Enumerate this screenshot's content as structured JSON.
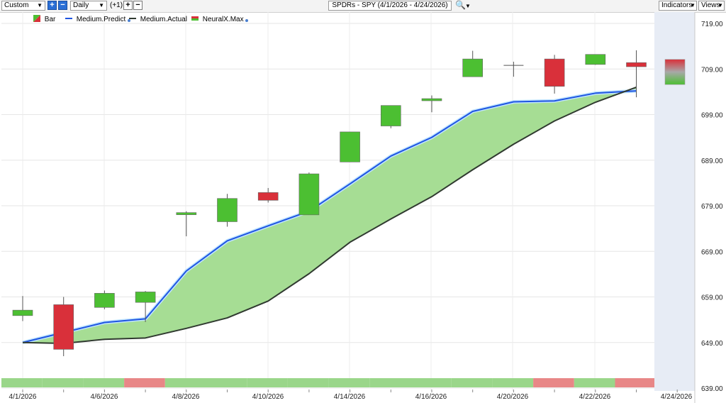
{
  "toolbar": {
    "preset_value": "Custom",
    "period_value": "Daily",
    "offset_label": "(+1)",
    "title": "SPDRs - SPY (4/1/2026 - 4/24/2026)",
    "indicators_label": "Indicators",
    "views_label": "Views",
    "search_icon": "magnifier-icon"
  },
  "legend": [
    {
      "label": "Bar",
      "icon": "bar-swatch-icon"
    },
    {
      "label": "Medium.Predict",
      "color": "#1f55e0"
    },
    {
      "label": "Medium.Actual",
      "color": "#303a30"
    },
    {
      "label": "NeuralX.Max",
      "icon": "neuralx-swatch-icon"
    }
  ],
  "colors": {
    "up": "#4cbf32",
    "down": "#d9303a",
    "predict": "#1f55e0",
    "actual": "#303a30",
    "band_fill": "#a6dd94",
    "strip_up": "#9ad68a",
    "strip_down": "#e88787",
    "forecast_bg": "#e7ecf5"
  },
  "chart_data": {
    "type": "candlestick",
    "ylim": [
      639,
      719
    ],
    "y_ticks": [
      "719.00",
      "709.00",
      "699.00",
      "689.00",
      "679.00",
      "669.00",
      "659.00",
      "649.00",
      "639.00"
    ],
    "x_ticks": [
      "4/1/2026",
      "4/6/2026",
      "4/8/2026",
      "4/10/2026",
      "4/14/2026",
      "4/16/2026",
      "4/20/2026",
      "4/22/2026",
      "4/24/2026"
    ],
    "candles": [
      {
        "o": 654.9,
        "h": 659.2,
        "l": 653.7,
        "c": 656.1
      },
      {
        "o": 657.3,
        "h": 659.0,
        "l": 646.0,
        "c": 647.5
      },
      {
        "o": 656.7,
        "h": 660.4,
        "l": 656.3,
        "c": 659.8
      },
      {
        "o": 657.8,
        "h": 660.3,
        "l": 653.5,
        "c": 660.1
      },
      {
        "o": 677.1,
        "h": 677.8,
        "l": 672.3,
        "c": 677.5
      },
      {
        "o": 675.5,
        "h": 681.6,
        "l": 674.4,
        "c": 680.6
      },
      {
        "o": 681.9,
        "h": 682.9,
        "l": 679.7,
        "c": 680.2
      },
      {
        "o": 677.0,
        "h": 686.3,
        "l": 677.0,
        "c": 686.0
      },
      {
        "o": 688.6,
        "h": 695.2,
        "l": 688.6,
        "c": 695.2
      },
      {
        "o": 696.5,
        "h": 701.0,
        "l": 696.0,
        "c": 701.0
      },
      {
        "o": 702.1,
        "h": 703.2,
        "l": 699.5,
        "c": 702.5
      },
      {
        "o": 707.3,
        "h": 713.0,
        "l": 707.3,
        "c": 711.2
      },
      {
        "o": 709.8,
        "h": 710.6,
        "l": 707.3,
        "c": 709.8
      },
      {
        "o": 711.2,
        "h": 712.1,
        "l": 703.6,
        "c": 705.2
      },
      {
        "o": 710.0,
        "h": 712.2,
        "l": 709.9,
        "c": 712.2
      },
      {
        "o": 710.4,
        "h": 713.1,
        "l": 702.8,
        "c": 709.5
      }
    ],
    "forecast": {
      "o": 711.1,
      "c": 705.6
    },
    "medium_predict": [
      649.0,
      651.2,
      653.4,
      654.2,
      664.7,
      671.3,
      674.6,
      677.8,
      683.8,
      689.9,
      694.0,
      699.7,
      701.8,
      702.0,
      703.7,
      704.2
    ],
    "medium_actual": [
      649.0,
      648.8,
      649.7,
      650.0,
      652.1,
      654.4,
      658.1,
      664.1,
      671.0,
      676.1,
      681.0,
      686.9,
      692.5,
      697.6,
      701.7,
      705.0
    ],
    "strip": [
      "up",
      "up",
      "up",
      "down",
      "up",
      "up",
      "up",
      "up",
      "up",
      "up",
      "up",
      "up",
      "up",
      "down",
      "up",
      "down"
    ]
  }
}
